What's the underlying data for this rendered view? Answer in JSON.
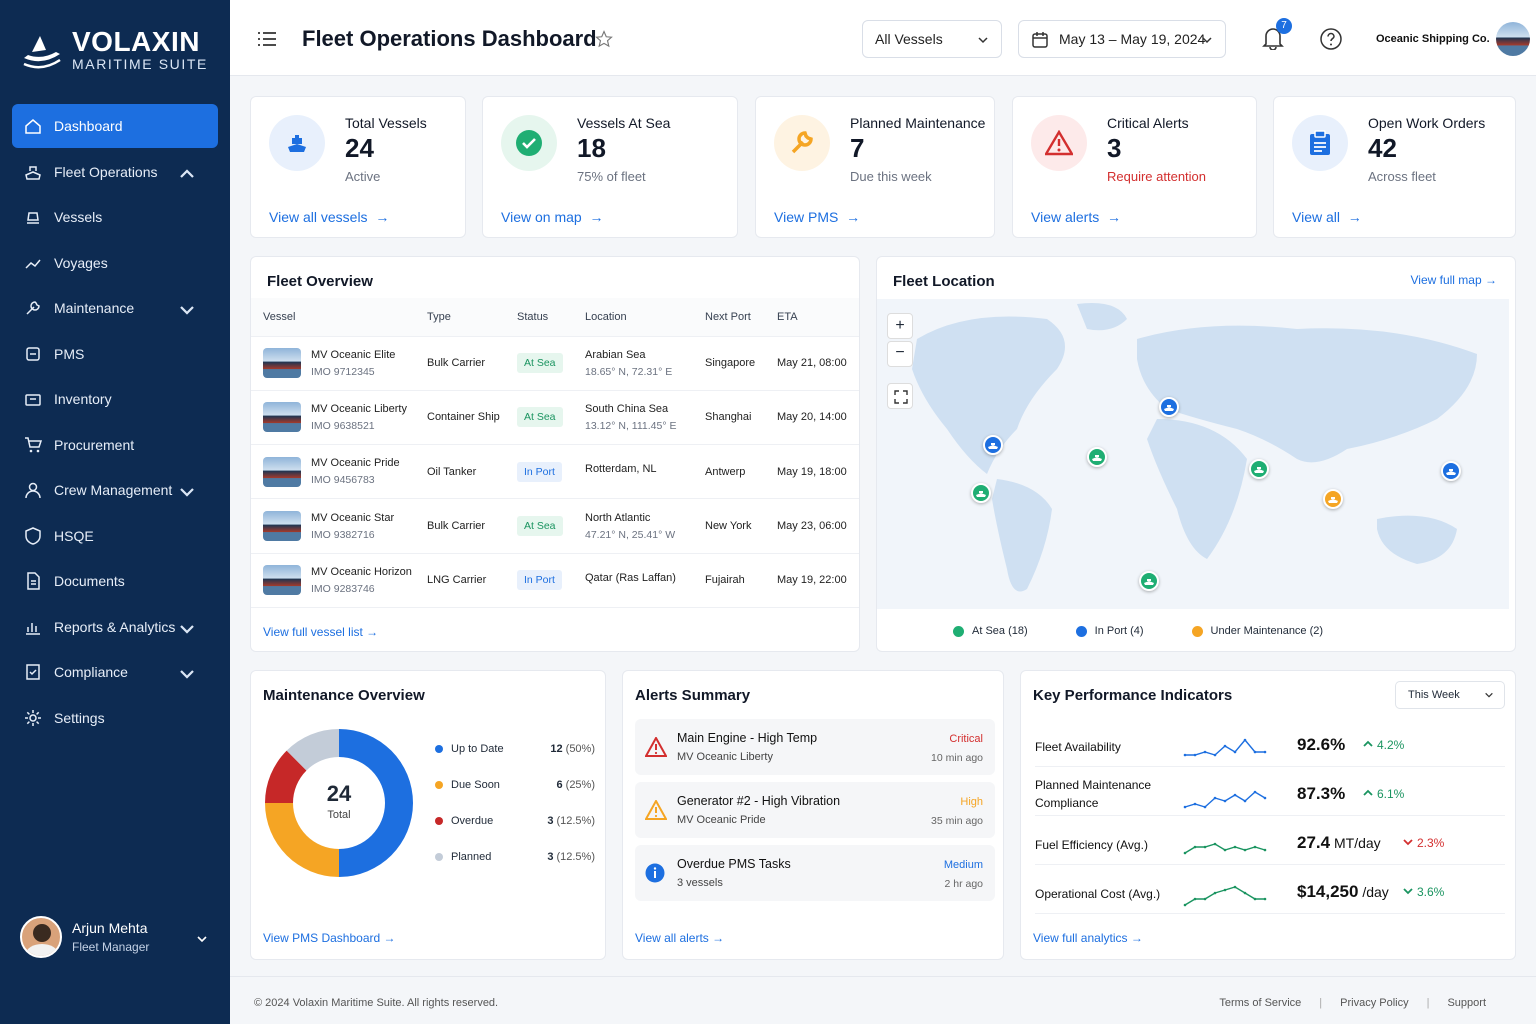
{
  "brand": {
    "name": "VOLAXIN",
    "tagline": "MARITIME SUITE"
  },
  "nav": [
    {
      "label": "Dashboard",
      "icon": "home-icon"
    },
    {
      "label": "Fleet Operations",
      "icon": "ship-icon"
    },
    {
      "label": "Vessels",
      "icon": "vessel-icon"
    },
    {
      "label": "Voyages",
      "icon": "route-icon"
    },
    {
      "label": "Maintenance",
      "icon": "wrench-icon"
    },
    {
      "label": "PMS",
      "icon": "pms-icon"
    },
    {
      "label": "Inventory",
      "icon": "inventory-icon"
    },
    {
      "label": "Procurement",
      "icon": "cart-icon"
    },
    {
      "label": "Crew Management",
      "icon": "crew-icon"
    },
    {
      "label": "HSQE",
      "icon": "shield-icon"
    },
    {
      "label": "Documents",
      "icon": "document-icon"
    },
    {
      "label": "Reports & Analytics",
      "icon": "chart-icon"
    },
    {
      "label": "Compliance",
      "icon": "compliance-icon"
    },
    {
      "label": "Settings",
      "icon": "gear-icon"
    }
  ],
  "user": {
    "name": "Arjun Mehta",
    "role": "Fleet Manager"
  },
  "header": {
    "title": "Fleet Operations Dashboard",
    "vessel_filter": "All Vessels",
    "date_range": "May 13 – May 19, 2024",
    "notifications": "7",
    "company": "Oceanic Shipping Co."
  },
  "kpis": [
    {
      "label": "Total Vessels",
      "value": "24",
      "sub": "Active",
      "link": "View all vessels"
    },
    {
      "label": "Vessels At Sea",
      "value": "18",
      "sub": "75% of fleet",
      "link": "View on map"
    },
    {
      "label": "Planned Maintenance",
      "value": "7",
      "sub": "Due this week",
      "link": "View PMS"
    },
    {
      "label": "Critical Alerts",
      "value": "3",
      "sub": "Require attention",
      "link": "View alerts"
    },
    {
      "label": "Open Work Orders",
      "value": "42",
      "sub": "Across fleet",
      "link": "View all"
    }
  ],
  "fleet": {
    "title": "Fleet Overview",
    "columns": [
      "Vessel",
      "Type",
      "Status",
      "Location",
      "Next Port",
      "ETA"
    ],
    "rows": [
      {
        "name": "MV Oceanic Elite",
        "imo": "IMO 9712345",
        "type": "Bulk Carrier",
        "status": "At Sea",
        "loc": "Arabian Sea",
        "coord": "18.65° N, 72.31° E",
        "port": "Singapore",
        "eta": "May 21, 08:00"
      },
      {
        "name": "MV Oceanic Liberty",
        "imo": "IMO 9638521",
        "type": "Container Ship",
        "status": "At Sea",
        "loc": "South China Sea",
        "coord": "13.12° N, 111.45° E",
        "port": "Shanghai",
        "eta": "May 20, 14:00"
      },
      {
        "name": "MV Oceanic Pride",
        "imo": "IMO 9456783",
        "type": "Oil Tanker",
        "status": "In Port",
        "loc": "Rotterdam, NL",
        "coord": "",
        "port": "Antwerp",
        "eta": "May 19, 18:00"
      },
      {
        "name": "MV Oceanic Star",
        "imo": "IMO 9382716",
        "type": "Bulk Carrier",
        "status": "At Sea",
        "loc": "North Atlantic",
        "coord": "47.21° N, 25.41° W",
        "port": "New York",
        "eta": "May 23, 06:00"
      },
      {
        "name": "MV Oceanic Horizon",
        "imo": "IMO 9283746",
        "type": "LNG Carrier",
        "status": "In Port",
        "loc": "Qatar (Ras Laffan)",
        "coord": "",
        "port": "Fujairah",
        "eta": "May 19, 22:00"
      }
    ],
    "link": "View full vessel list"
  },
  "map": {
    "title": "Fleet Location",
    "link": "View full map",
    "legend": [
      {
        "label": "At Sea (18)",
        "color": "#1fae73"
      },
      {
        "label": "In Port (4)",
        "color": "#1d6fe0"
      },
      {
        "label": "Under Maintenance (2)",
        "color": "#f5a524"
      }
    ]
  },
  "maintenance": {
    "title": "Maintenance Overview",
    "total": "24",
    "total_label": "Total",
    "items": [
      {
        "label": "Up to Date",
        "count": "12",
        "pct": "(50%)",
        "value": 12,
        "color": "#1d6fe0"
      },
      {
        "label": "Due Soon",
        "count": "6",
        "pct": "(25%)",
        "value": 6,
        "color": "#f5a524"
      },
      {
        "label": "Overdue",
        "count": "3",
        "pct": "(12.5%)",
        "value": 3,
        "color": "#c62828"
      },
      {
        "label": "Planned",
        "count": "3",
        "pct": "(12.5%)",
        "value": 3,
        "color": "#c3ccd8"
      }
    ],
    "link": "View PMS Dashboard"
  },
  "alerts": {
    "title": "Alerts Summary",
    "items": [
      {
        "title": "Main Engine - High Temp",
        "sub": "MV Oceanic Liberty",
        "level": "Critical",
        "time": "10 min ago",
        "color": "#d32f2f"
      },
      {
        "title": "Generator #2 - High Vibration",
        "sub": "MV Oceanic Pride",
        "level": "High",
        "time": "35 min ago",
        "color": "#f5a524"
      },
      {
        "title": "Overdue PMS Tasks",
        "sub": "3 vessels",
        "level": "Medium",
        "time": "2 hr ago",
        "color": "#1d6fe0"
      }
    ],
    "link": "View all alerts"
  },
  "kpi_panel": {
    "title": "Key Performance Indicators",
    "period": "This Week",
    "rows": [
      {
        "label": "Fleet Availability",
        "value": "92.6%",
        "unit": "",
        "delta": "4.2%",
        "dir": "up"
      },
      {
        "label": "Planned Maintenance Compliance",
        "value": "87.3%",
        "unit": "",
        "delta": "6.1%",
        "dir": "up"
      },
      {
        "label": "Fuel Efficiency (Avg.)",
        "value": "27.4",
        "unit": " MT/day",
        "delta": "2.3%",
        "dir": "down"
      },
      {
        "label": "Operational Cost (Avg.)",
        "value": "$14,250",
        "unit": " /day",
        "delta": "3.6%",
        "dir": "down-good"
      }
    ],
    "link": "View full analytics"
  },
  "footer": {
    "copy": "© 2024 Volaxin Maritime Suite. All rights reserved.",
    "links": [
      "Terms of Service",
      "Privacy Policy",
      "Support"
    ]
  }
}
